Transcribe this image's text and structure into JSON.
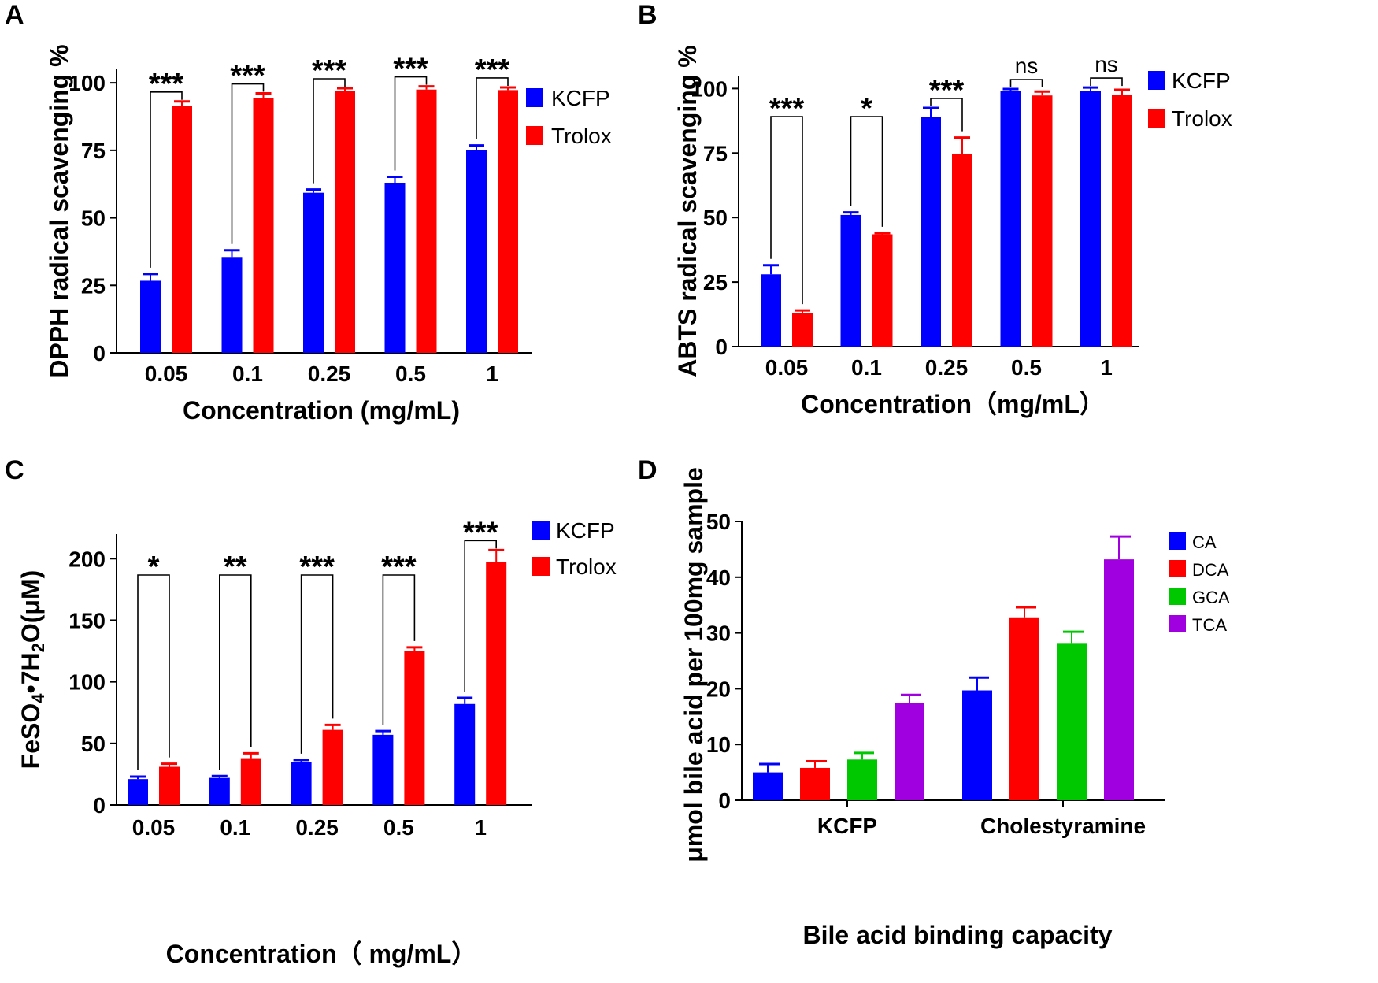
{
  "chart_data": [
    {
      "id": "A",
      "panel_label": "A",
      "type": "bar",
      "ylabel": "DPPH radical scavenging %",
      "xlabel": "Concentration (mg/mL)",
      "categories": [
        "0.05",
        "0.1",
        "0.25",
        "0.5",
        "1"
      ],
      "ylim": [
        0,
        105
      ],
      "yticks": [
        0,
        25,
        50,
        75,
        100
      ],
      "series": [
        {
          "name": "KCFP",
          "color": "#0000ff",
          "values": [
            26.7,
            35.5,
            59.3,
            63.0,
            75.0
          ],
          "errors": [
            2.5,
            2.5,
            1.2,
            2.2,
            1.8
          ]
        },
        {
          "name": "Trolox",
          "color": "#ff0000",
          "values": [
            91.3,
            94.3,
            97.0,
            97.5,
            97.3
          ],
          "errors": [
            1.8,
            1.8,
            1.0,
            1.2,
            1.0
          ]
        }
      ],
      "significance": [
        "***",
        "***",
        "***",
        "***",
        "***"
      ]
    },
    {
      "id": "B",
      "panel_label": "B",
      "type": "bar",
      "ylabel": "ABTS radical scavenging %",
      "xlabel": "Concentration（mg/mL）",
      "categories": [
        "0.05",
        "0.1",
        "0.25",
        "0.5",
        "1"
      ],
      "ylim": [
        0,
        105
      ],
      "yticks": [
        0,
        25,
        50,
        75,
        100
      ],
      "series": [
        {
          "name": "KCFP",
          "color": "#0000ff",
          "values": [
            28.0,
            51.0,
            89.0,
            99.0,
            99.2
          ],
          "errors": [
            3.5,
            1.0,
            3.5,
            0.8,
            1.2
          ]
        },
        {
          "name": "Trolox",
          "color": "#ff0000",
          "values": [
            13.0,
            43.5,
            74.5,
            97.3,
            97.5
          ],
          "errors": [
            1.0,
            0.5,
            6.5,
            1.5,
            2.0
          ]
        }
      ],
      "significance": [
        "***",
        "*",
        "***",
        "ns",
        "ns"
      ]
    },
    {
      "id": "C",
      "panel_label": "C",
      "type": "bar",
      "ylabel_parts": {
        "a": "FeSO",
        "sub1": "4",
        "b": "•7H",
        "sub2": "2",
        "c": "O(μM)"
      },
      "xlabel": "Concentration（ mg/mL）",
      "categories": [
        "0.05",
        "0.1",
        "0.25",
        "0.5",
        "1"
      ],
      "ylim": [
        0,
        220
      ],
      "yticks": [
        0,
        50,
        100,
        150,
        200
      ],
      "series": [
        {
          "name": "KCFP",
          "color": "#0000ff",
          "values": [
            21.0,
            22.0,
            35.0,
            57.0,
            82.0
          ],
          "errors": [
            2.0,
            1.5,
            1.5,
            3.0,
            5.0
          ]
        },
        {
          "name": "Trolox",
          "color": "#ff0000",
          "values": [
            31.0,
            38.0,
            61.0,
            125.0,
            197.0
          ],
          "errors": [
            2.5,
            4.0,
            4.0,
            3.0,
            10.0
          ]
        }
      ],
      "significance": [
        "*",
        "**",
        "***",
        "***",
        "***"
      ]
    },
    {
      "id": "D",
      "panel_label": "D",
      "type": "bar",
      "ylabel": "μmol bile acid per 100mg sample",
      "xlabel": "Bile acid binding capacity",
      "categories": [
        "KCFP",
        "Cholestyramine"
      ],
      "ylim": [
        0,
        50
      ],
      "yticks": [
        0,
        10,
        20,
        30,
        40,
        50
      ],
      "series": [
        {
          "name": "CA",
          "color": "#0000ff",
          "values": [
            5.0,
            19.7
          ],
          "errors": [
            1.5,
            2.3
          ]
        },
        {
          "name": "DCA",
          "color": "#ff0000",
          "values": [
            5.8,
            32.8
          ],
          "errors": [
            1.2,
            1.8
          ]
        },
        {
          "name": "GCA",
          "color": "#00c800",
          "values": [
            7.3,
            28.2
          ],
          "errors": [
            1.2,
            2.0
          ]
        },
        {
          "name": "TCA",
          "color": "#a000e0",
          "values": [
            17.4,
            43.2
          ],
          "errors": [
            1.5,
            4.1
          ]
        }
      ]
    }
  ]
}
